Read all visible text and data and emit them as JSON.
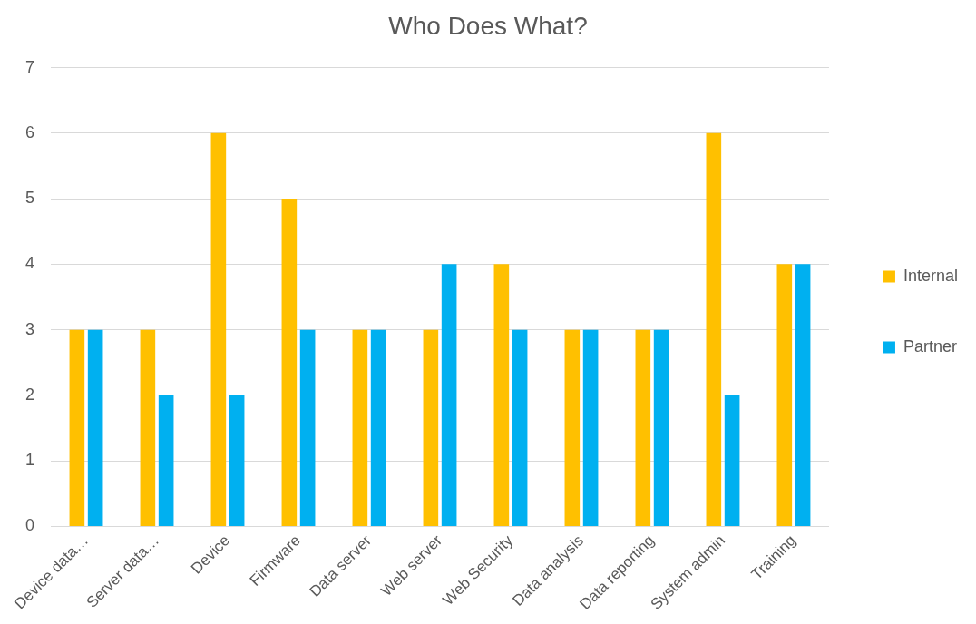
{
  "chart_data": {
    "type": "bar",
    "title": "Who Does What?",
    "categories": [
      "Device data…",
      "Server data…",
      "Device",
      "Firmware",
      "Data server",
      "Web server",
      "Web Security",
      "Data analysis",
      "Data reporting",
      "System admin",
      "Training"
    ],
    "series": [
      {
        "name": "Internal",
        "color": "#ffc000",
        "values": [
          3,
          3,
          6,
          5,
          3,
          3,
          4,
          3,
          3,
          6,
          4
        ]
      },
      {
        "name": "Partner",
        "color": "#00b0f0",
        "values": [
          3,
          2,
          2,
          3,
          3,
          4,
          3,
          3,
          3,
          2,
          4
        ]
      }
    ],
    "ylim": [
      0,
      7
    ],
    "yticks": [
      0,
      1,
      2,
      3,
      4,
      5,
      6,
      7
    ],
    "grid": "y",
    "legend": "right"
  }
}
